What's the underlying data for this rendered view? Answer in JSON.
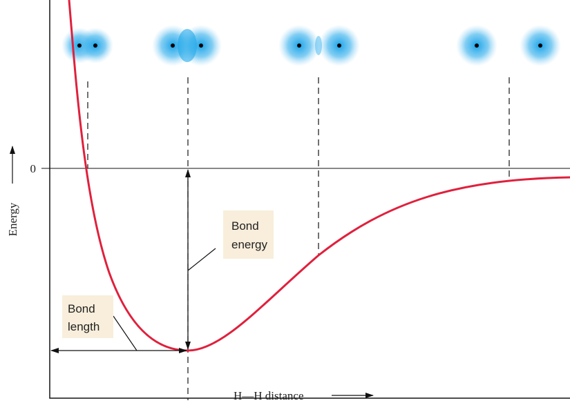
{
  "axes": {
    "y_label": "Energy",
    "x_label": "H—H distance",
    "zero_tick": "0"
  },
  "annotations": {
    "bond_energy": [
      "Bond",
      "energy"
    ],
    "bond_length": [
      "Bond",
      "length"
    ]
  }
}
